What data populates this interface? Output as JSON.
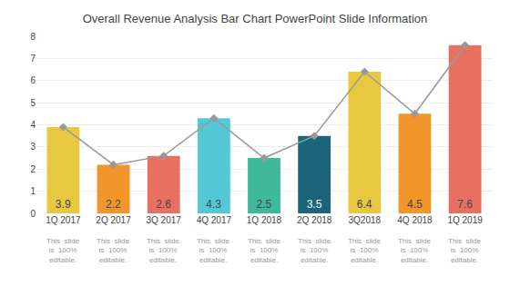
{
  "chart_data": {
    "type": "bar",
    "title": "Overall Revenue Analysis Bar Chart PowerPoint Slide Information",
    "categories": [
      "1Q 2017",
      "2Q 2017",
      "3Q 2017",
      "4Q 2017",
      "1Q 2018",
      "2Q 2018",
      "3Q2018",
      "4Q 2018",
      "1Q 2019"
    ],
    "series": [
      {
        "type": "bar",
        "values": [
          3.9,
          2.2,
          2.6,
          4.3,
          2.5,
          3.5,
          6.4,
          4.5,
          7.6
        ],
        "colors": [
          "#e8c840",
          "#f0962a",
          "#e87060",
          "#55c8d8",
          "#40b89a",
          "#1a6678",
          "#e8c840",
          "#f0962a",
          "#e87060"
        ]
      },
      {
        "type": "line",
        "values": [
          3.9,
          2.2,
          2.6,
          4.3,
          2.5,
          3.5,
          6.4,
          4.5,
          7.6
        ],
        "color": "#999999",
        "marker": "diamond",
        "line_style": "solid"
      }
    ],
    "data_labels": true,
    "ylim": [
      0,
      8
    ],
    "yticks": [
      0,
      1,
      2,
      3,
      4,
      5,
      6,
      7,
      8
    ],
    "grid": true,
    "annotations": [
      {
        "category": "1Q 2017",
        "text": "This  slide\nis  100%\neditable."
      },
      {
        "category": "2Q 2017",
        "text": "This  slide\nis  100%\neditable."
      },
      {
        "category": "3Q 2017",
        "text": "This  slide\nis  100%\neditable."
      },
      {
        "category": "4Q 2017",
        "text": "This  slide\nis  100%\neditable."
      },
      {
        "category": "1Q 2018",
        "text": "This  slide\nis  100%\neditable."
      },
      {
        "category": "2Q 2018",
        "text": "This  slide\nis  100%\neditable."
      },
      {
        "category": "3Q2018",
        "text": "This  slide\nis  100%\neditable."
      },
      {
        "category": "4Q 2018",
        "text": "This  slide\nis  100%\neditable."
      },
      {
        "category": "1Q 2019",
        "text": "This  slide\nis  100%\neditable."
      }
    ]
  }
}
